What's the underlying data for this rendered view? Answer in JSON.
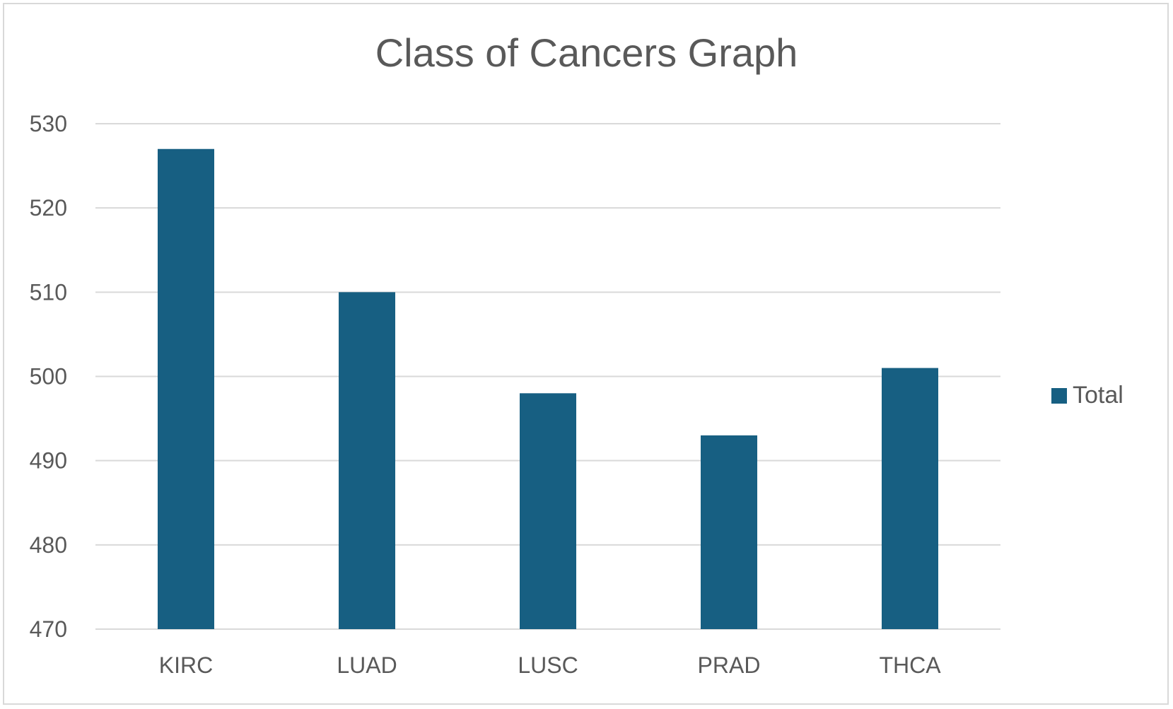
{
  "chart_data": {
    "type": "bar",
    "title": "Class of Cancers Graph",
    "categories": [
      "KIRC",
      "LUAD",
      "LUSC",
      "PRAD",
      "THCA"
    ],
    "series": [
      {
        "name": "Total",
        "values": [
          527,
          510,
          498,
          493,
          501
        ]
      }
    ],
    "xlabel": "",
    "ylabel": "",
    "ylim": [
      470,
      530
    ],
    "yticks": [
      "470",
      "480",
      "490",
      "500",
      "510",
      "520",
      "530"
    ],
    "grid": true,
    "legend_position": "right",
    "bar_color": "#175f82",
    "grid_color": "#d9d9d9",
    "text_color": "#595959"
  }
}
